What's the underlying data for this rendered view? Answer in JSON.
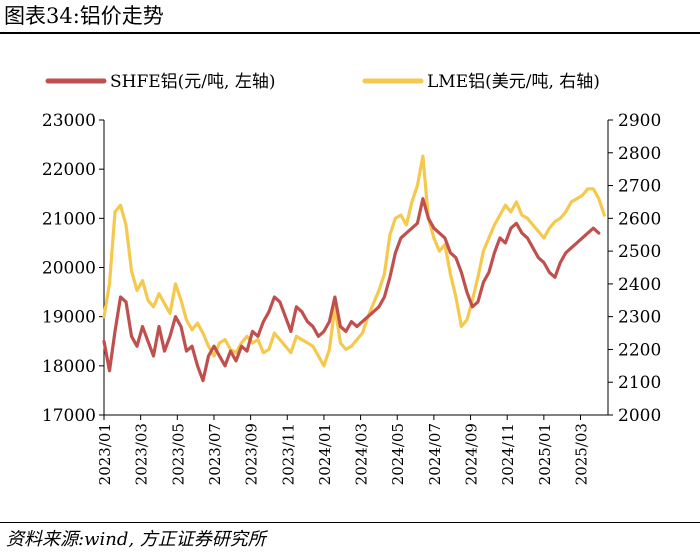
{
  "header": {
    "title": "图表34:铝价走势"
  },
  "footer": {
    "source": "资料来源:wind, 方正证券研究所"
  },
  "chart_data": {
    "type": "line",
    "title": "铝价走势",
    "legend_position": "top",
    "xlabel": "",
    "x_ticks": [
      "2023/01",
      "2023/03",
      "2023/05",
      "2023/07",
      "2023/09",
      "2023/11",
      "2024/01",
      "2024/03",
      "2024/05",
      "2024/07",
      "2024/09",
      "2024/11",
      "2025/01",
      "2025/03"
    ],
    "x_range_months": [
      0,
      27.5
    ],
    "y_left": {
      "ticks": [
        17000,
        18000,
        19000,
        20000,
        21000,
        22000,
        23000
      ],
      "ylim": [
        17000,
        23000
      ]
    },
    "y_right": {
      "ticks": [
        2000,
        2100,
        2200,
        2300,
        2400,
        2500,
        2600,
        2700,
        2800,
        2900
      ],
      "ylim": [
        2000,
        2900
      ]
    },
    "series": [
      {
        "name": "SHFE铝(元/吨, 左轴)",
        "axis": "left",
        "color": "#C0504D",
        "x": [
          0,
          0.3,
          0.6,
          0.9,
          1.2,
          1.5,
          1.8,
          2.1,
          2.4,
          2.7,
          3.0,
          3.3,
          3.6,
          3.9,
          4.2,
          4.5,
          4.8,
          5.1,
          5.4,
          5.7,
          6.0,
          6.3,
          6.6,
          6.9,
          7.2,
          7.5,
          7.8,
          8.1,
          8.4,
          8.7,
          9.0,
          9.3,
          9.6,
          9.9,
          10.2,
          10.5,
          10.8,
          11.1,
          11.4,
          11.7,
          12.0,
          12.3,
          12.6,
          12.9,
          13.2,
          13.5,
          13.8,
          14.1,
          14.4,
          14.7,
          15.0,
          15.3,
          15.6,
          15.9,
          16.2,
          16.5,
          16.8,
          17.1,
          17.4,
          17.7,
          18.0,
          18.3,
          18.6,
          18.9,
          19.2,
          19.5,
          19.8,
          20.1,
          20.4,
          20.7,
          21.0,
          21.3,
          21.6,
          21.9,
          22.2,
          22.5,
          22.8,
          23.1,
          23.4,
          23.7,
          24.0,
          24.3,
          24.6,
          24.9,
          25.2,
          25.5,
          25.8,
          26.1,
          26.4,
          26.7,
          27.0
        ],
        "values": [
          18500,
          17900,
          18700,
          19400,
          19300,
          18600,
          18400,
          18800,
          18500,
          18200,
          18800,
          18300,
          18600,
          19000,
          18800,
          18300,
          18400,
          18000,
          17700,
          18200,
          18400,
          18200,
          18000,
          18300,
          18100,
          18400,
          18300,
          18700,
          18600,
          18900,
          19100,
          19400,
          19300,
          19000,
          18700,
          19200,
          19100,
          18900,
          18800,
          18600,
          18700,
          18900,
          19400,
          18800,
          18700,
          18900,
          18800,
          18900,
          19000,
          19100,
          19200,
          19400,
          19800,
          20300,
          20600,
          20700,
          20800,
          20900,
          21400,
          21000,
          20800,
          20700,
          20600,
          20300,
          20200,
          19900,
          19500,
          19200,
          19300,
          19700,
          19900,
          20300,
          20600,
          20500,
          20800,
          20900,
          20700,
          20600,
          20400,
          20200,
          20100,
          19900,
          19800,
          20100,
          20300,
          20400,
          20500,
          20600,
          20700,
          20800,
          20700
        ]
      },
      {
        "name": "LME铝(美元/吨, 右轴)",
        "axis": "right",
        "color": "#F5C84E",
        "x": [
          0,
          0.3,
          0.6,
          0.9,
          1.2,
          1.5,
          1.8,
          2.1,
          2.4,
          2.7,
          3.0,
          3.3,
          3.6,
          3.9,
          4.2,
          4.5,
          4.8,
          5.1,
          5.4,
          5.7,
          6.0,
          6.3,
          6.6,
          6.9,
          7.2,
          7.5,
          7.8,
          8.1,
          8.4,
          8.7,
          9.0,
          9.3,
          9.6,
          9.9,
          10.2,
          10.5,
          10.8,
          11.1,
          11.4,
          11.7,
          12.0,
          12.3,
          12.6,
          12.9,
          13.2,
          13.5,
          13.8,
          14.1,
          14.4,
          14.7,
          15.0,
          15.3,
          15.6,
          15.9,
          16.2,
          16.5,
          16.8,
          17.1,
          17.4,
          17.7,
          18.0,
          18.3,
          18.6,
          18.9,
          19.2,
          19.5,
          19.8,
          20.1,
          20.4,
          20.7,
          21.0,
          21.3,
          21.6,
          21.9,
          22.2,
          22.5,
          22.8,
          23.1,
          23.4,
          23.7,
          24.0,
          24.3,
          24.6,
          24.9,
          25.2,
          25.5,
          25.8,
          26.1,
          26.4,
          26.7,
          27.0,
          27.3
        ],
        "values": [
          2300,
          2400,
          2620,
          2640,
          2580,
          2440,
          2380,
          2410,
          2350,
          2330,
          2370,
          2340,
          2310,
          2400,
          2350,
          2290,
          2260,
          2280,
          2250,
          2210,
          2180,
          2220,
          2230,
          2200,
          2190,
          2220,
          2240,
          2220,
          2230,
          2190,
          2200,
          2250,
          2230,
          2210,
          2190,
          2240,
          2230,
          2220,
          2210,
          2180,
          2150,
          2200,
          2330,
          2220,
          2200,
          2210,
          2230,
          2250,
          2300,
          2340,
          2380,
          2430,
          2550,
          2600,
          2610,
          2580,
          2650,
          2700,
          2790,
          2600,
          2540,
          2500,
          2520,
          2430,
          2360,
          2270,
          2290,
          2350,
          2420,
          2500,
          2540,
          2580,
          2610,
          2640,
          2620,
          2650,
          2610,
          2600,
          2580,
          2560,
          2540,
          2570,
          2590,
          2600,
          2620,
          2650,
          2660,
          2670,
          2690,
          2690,
          2660,
          2610
        ]
      }
    ]
  }
}
